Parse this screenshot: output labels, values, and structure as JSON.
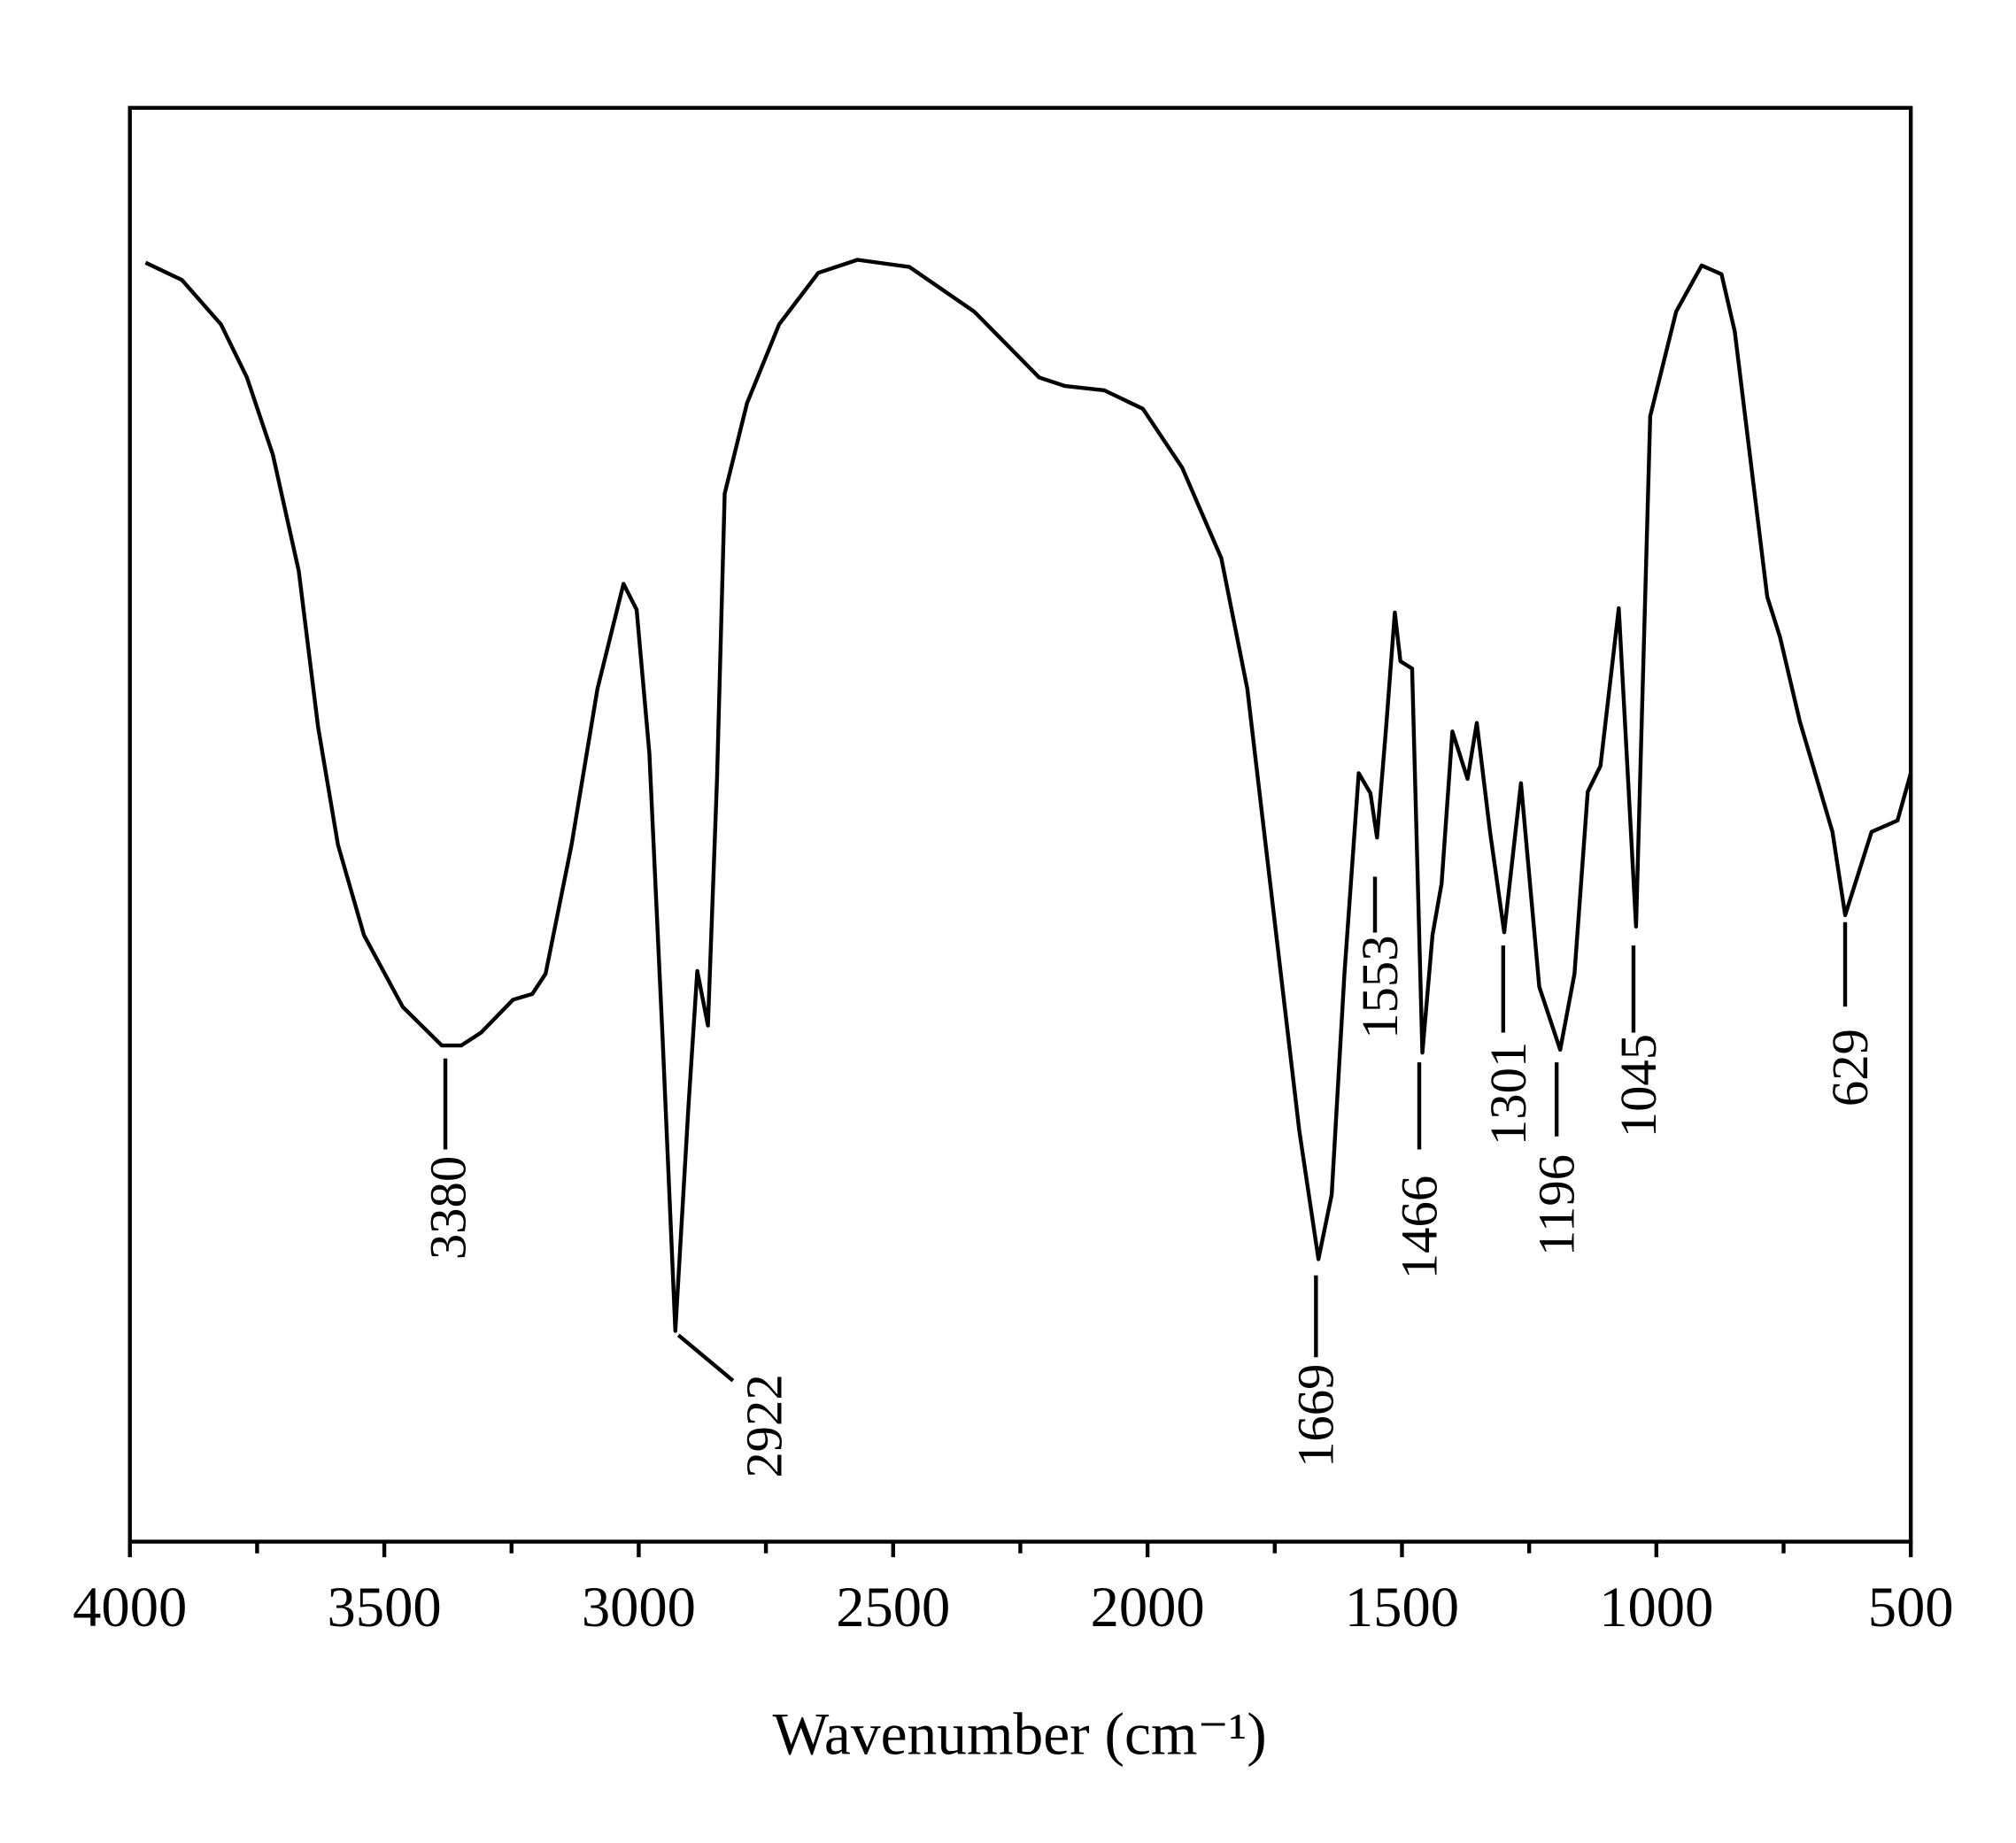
{
  "chart_data": {
    "type": "line",
    "x_label": "Wavenumber (cm⁻¹)",
    "xlim": [
      4000,
      500
    ],
    "xticks": [
      4000,
      3500,
      3000,
      2500,
      2000,
      1500,
      1000,
      500
    ],
    "xticks_minor": [
      3750,
      3250,
      2750,
      2250,
      1750,
      1250,
      750
    ],
    "ylim": [
      0,
      100
    ],
    "series": [
      {
        "color": "#000000",
        "x": [
          3969,
          3898,
          3821,
          3770,
          3719,
          3668,
          3630,
          3591,
          3540,
          3464,
          3387,
          3349,
          3310,
          3247,
          3209,
          3183,
          3132,
          3081,
          3030,
          3004,
          2979,
          2953,
          2928,
          2902,
          2885,
          2864,
          2846,
          2831,
          2787,
          2724,
          2647,
          2570,
          2468,
          2341,
          2213,
          2162,
          2085,
          2009,
          1932,
          1855,
          1804,
          1753,
          1702,
          1664,
          1638,
          1613,
          1585,
          1562,
          1549,
          1531,
          1514,
          1503,
          1480,
          1460,
          1440,
          1422,
          1401,
          1371,
          1353,
          1327,
          1299,
          1266,
          1230,
          1189,
          1161,
          1135,
          1110,
          1074,
          1040,
          1012,
          961,
          911,
          872,
          846,
          782,
          757,
          718,
          654,
          629,
          577,
          526,
          500
        ],
        "values": [
          89.2,
          88.0,
          84.9,
          81.2,
          75.8,
          67.7,
          56.8,
          48.6,
          42.3,
          37.3,
          34.6,
          34.6,
          35.5,
          37.8,
          38.2,
          39.6,
          48.6,
          59.5,
          66.8,
          65.0,
          55.0,
          35.1,
          14.7,
          30.5,
          39.8,
          36.0,
          53.2,
          73.1,
          79.4,
          84.9,
          88.5,
          89.4,
          88.9,
          85.8,
          81.2,
          80.6,
          80.3,
          79.0,
          74.9,
          68.6,
          59.5,
          44.1,
          28.7,
          19.7,
          24.2,
          39.6,
          53.6,
          52.2,
          49.1,
          56.8,
          64.8,
          61.4,
          60.9,
          34.1,
          42.3,
          45.9,
          56.5,
          53.2,
          57.1,
          49.5,
          42.5,
          52.9,
          38.7,
          34.3,
          39.6,
          52.3,
          54.1,
          65.1,
          42.9,
          78.5,
          85.8,
          89.0,
          88.4,
          84.4,
          65.9,
          63.1,
          57.2,
          49.5,
          43.7,
          49.5,
          50.3,
          53.6
        ]
      }
    ],
    "peaks": [
      3380,
      2922,
      1669,
      1553,
      1466,
      1301,
      1196,
      1045,
      629
    ]
  }
}
